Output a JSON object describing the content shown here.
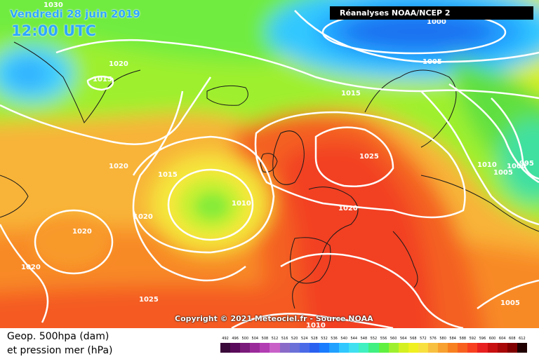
{
  "header": {
    "date": "Vendredi 28 juin 2019",
    "time": "12:00 UTC",
    "source_box": "Réanalyses NOAA/NCEP 2",
    "copyright": "Copyright © 2021 Meteociel.fr - Source NOAA"
  },
  "legend": {
    "line1": "Geop. 500hpa (dam)",
    "line2": "et pression mer (hPa)",
    "scale_values": [
      "492",
      "496",
      "500",
      "504",
      "508",
      "512",
      "516",
      "520",
      "524",
      "528",
      "532",
      "536",
      "540",
      "544",
      "548",
      "552",
      "556",
      "560",
      "564",
      "568",
      "572",
      "576",
      "580",
      "584",
      "588",
      "592",
      "596",
      "600",
      "604",
      "608",
      "612"
    ],
    "scale_colors": [
      "#3a0a3a",
      "#5a0a5a",
      "#7a1a7a",
      "#9a2a9a",
      "#b23cb2",
      "#c860c8",
      "#8a6ac8",
      "#6a70d8",
      "#4a6ae8",
      "#2a60f0",
      "#1a7cff",
      "#20a0ff",
      "#30c8ff",
      "#40e0f0",
      "#40f0c0",
      "#40f080",
      "#60f040",
      "#9ef02e",
      "#d4f020",
      "#f0f020",
      "#f8e040",
      "#f8c040",
      "#f8a030",
      "#f88020",
      "#f86020",
      "#f84020",
      "#e82020",
      "#c81010",
      "#a80808",
      "#800000",
      "#200000"
    ]
  },
  "isobars": [
    {
      "label": "1030"
    },
    {
      "label": "1000"
    },
    {
      "label": "1020"
    },
    {
      "label": "1015"
    },
    {
      "label": "1005"
    },
    {
      "label": "1015"
    },
    {
      "label": "1025"
    },
    {
      "label": "1010"
    },
    {
      "label": "1005"
    },
    {
      "label": "1000"
    },
    {
      "label": "995"
    },
    {
      "label": "1020"
    },
    {
      "label": "1015"
    },
    {
      "label": "1010"
    },
    {
      "label": "1020"
    },
    {
      "label": "1020"
    },
    {
      "label": "1020"
    },
    {
      "label": "1020"
    },
    {
      "label": "1025"
    },
    {
      "label": "1010"
    },
    {
      "label": "1005"
    }
  ]
}
